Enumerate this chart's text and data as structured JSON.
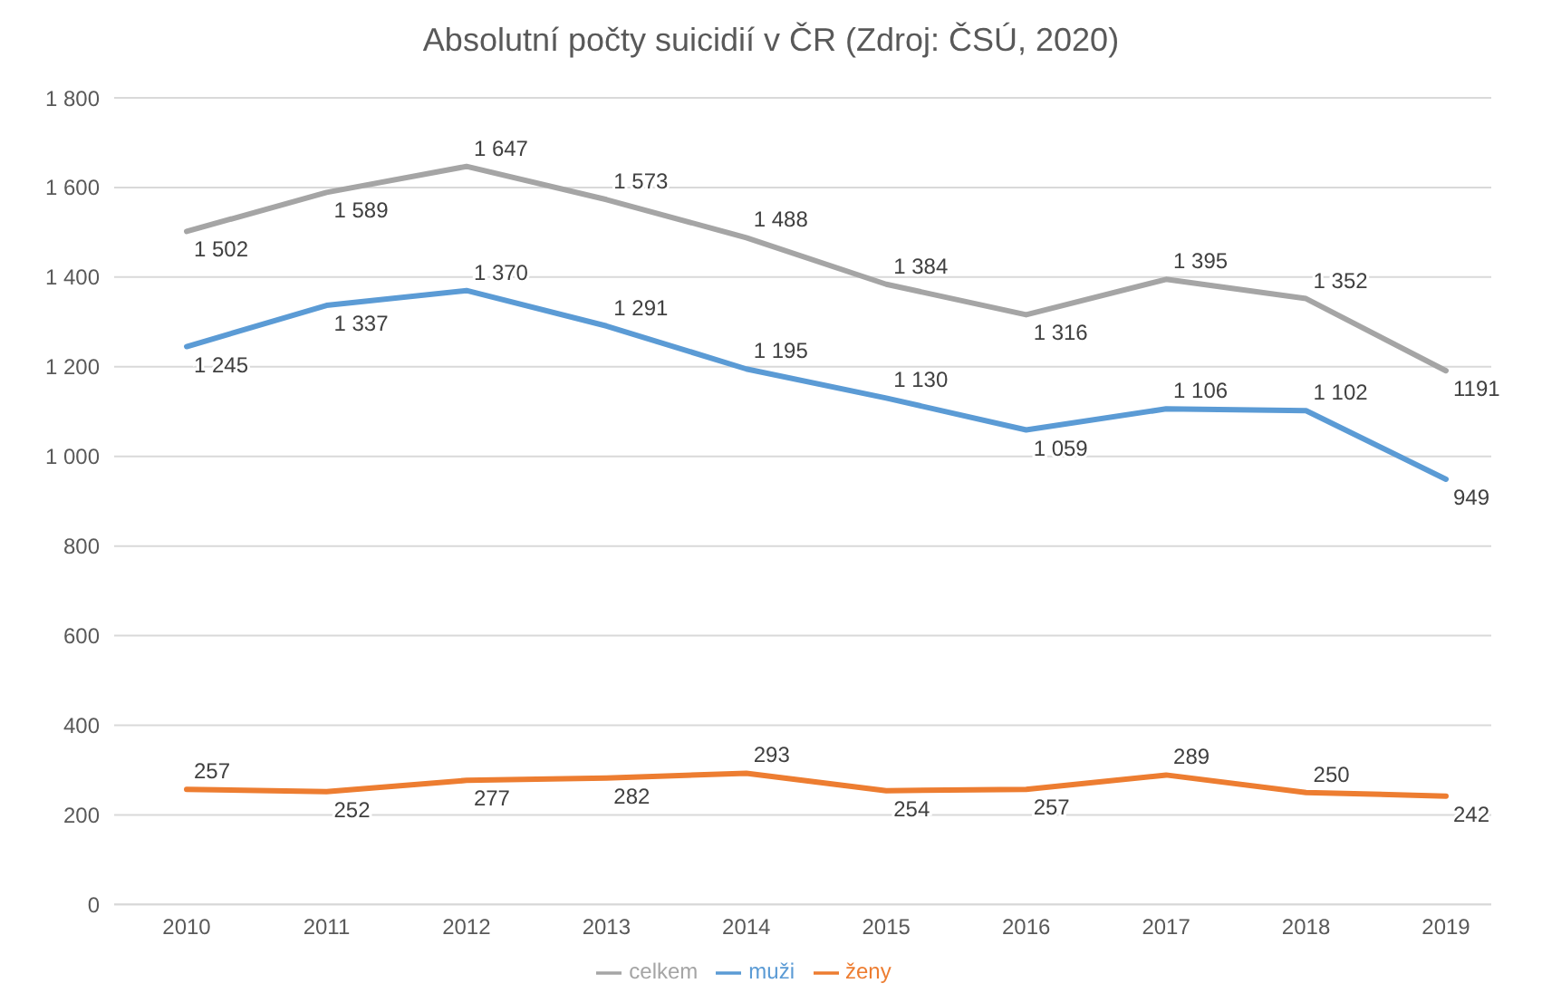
{
  "chart_data": {
    "type": "line",
    "title": "Absolutní počty suicidií v ČR (Zdroj: ČSÚ, 2020)",
    "categories": [
      "2010",
      "2011",
      "2012",
      "2013",
      "2014",
      "2015",
      "2016",
      "2017",
      "2018",
      "2019"
    ],
    "series": [
      {
        "name": "muži",
        "color": "#5b9bd5",
        "values": [
          1245,
          1337,
          1370,
          1291,
          1195,
          1130,
          1059,
          1106,
          1102,
          949
        ],
        "value_labels": [
          "1 245",
          "1 337",
          "1 370",
          "1 291",
          "1 195",
          "1 130",
          "1 059",
          "1 106",
          "1 102",
          "949"
        ]
      },
      {
        "name": "ženy",
        "color": "#ed7d31",
        "values": [
          257,
          252,
          277,
          282,
          293,
          254,
          257,
          289,
          250,
          242
        ],
        "value_labels": [
          "257",
          "252",
          "277",
          "282",
          "293",
          "254",
          "257",
          "289",
          "250",
          "242"
        ]
      },
      {
        "name": "celkem",
        "color": "#a5a5a5",
        "values": [
          1502,
          1589,
          1647,
          1573,
          1488,
          1384,
          1316,
          1395,
          1352,
          1191
        ],
        "value_labels": [
          "1 502",
          "1 589",
          "1 647",
          "1 573",
          "1 488",
          "1 384",
          "1 316",
          "1 395",
          "1 352",
          "1191"
        ]
      }
    ],
    "ylim": [
      0,
      1800
    ],
    "yticks": [
      {
        "value": 0,
        "label": "0"
      },
      {
        "value": 200,
        "label": "200"
      },
      {
        "value": 400,
        "label": "400"
      },
      {
        "value": 600,
        "label": "600"
      },
      {
        "value": 800,
        "label": "800"
      },
      {
        "value": 1000,
        "label": "1 000"
      },
      {
        "value": 1200,
        "label": "1 200"
      },
      {
        "value": 1400,
        "label": "1 400"
      },
      {
        "value": 1600,
        "label": "1 600"
      },
      {
        "value": 1800,
        "label": "1 800"
      }
    ],
    "grid": "y",
    "legend": "bottom",
    "marker": "none",
    "line_style": "solid"
  }
}
